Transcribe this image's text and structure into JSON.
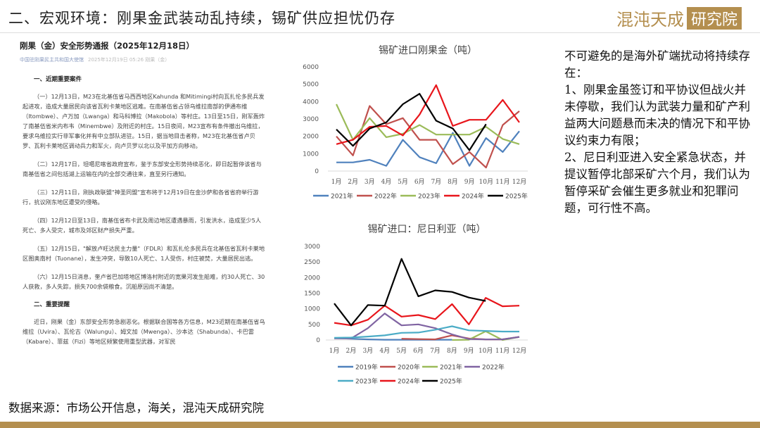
{
  "header": {
    "title": "二、宏观环境：刚果金武装动乱持续，锡矿供应担忧仍存",
    "logo_text": "混沌天成",
    "logo_box": "研究院"
  },
  "document": {
    "title": "刚果（金）安全形势通报（2025年12月18日）",
    "publisher": "中国驻刚果民主共和国大使馆",
    "date": "2025年12月19日 05:26 刚果（金）",
    "section1": "一、近期重要案件",
    "paragraphs1": [
      "（一）12月13日，M23在北基伍省马西西地区Kahunda 和Mitimingi村向瓦扎伦多民兵发起进攻，造成大量居民向该省瓦利卡莱地区逃难。在南基伍省占领乌维拉南部的伊通布维（Itombwe）、卢万加（Lwanga）和马科博拉（Makobola）等村庄。13日至15日，刚军轰炸了南基伍省米内布韦（Minembwe）及附近的村庄。15日夜间，M23宣布有条件撤出乌维拉，要求乌维拉实行非军事化并有中立部队进驻。15日，据当地目击者称，M23在北基伍省卢贝罗、瓦利卡莱地区调动兵力和军火，向卢贝罗以北以及平加方向移动。",
      "（二）12月17日，坦噶尼喀省政府宣布，鉴于东部安全形势持续恶化，即日起暂停该省与南基伍省之间包括湖上运输在内的全部交通往来，直至另行通知。",
      "（三）12月11日，刚执政联盟\"神圣同盟\"宣布将于12月19日在金沙萨和各省省府举行游行，抗议刚东地区遭受的侵略。",
      "（四）12月12日至13日，南基伍省布卡武及周边地区遭遇暴雨，引发洪水，造成至少5人死亡、多人受灾，城市及郊区财产损失严重。",
      "（五）12月15日，\"解放卢旺达民主力量\"（FDLR）和瓦扎伦多民兵在北基伍省瓦利卡莱地区图奥南村（Tuonane），发生冲突，导致10人死亡、1人受伤，村庄被焚，大量居民出逃。",
      "（六）12月15日消息，奎卢省巴加塔地区博洛村附近的宽果河发生船难，约30人死亡、30人获救，多人失踪，损失700余袋粮食。沉船原因尚不清楚。"
    ],
    "section2": "二、重要提醒",
    "paragraphs2": [
      "近日，刚果（金）东部安全形势急剧恶化。根据联合国等各方信息，M23近期在南基伍省乌维拉（Uvira）、瓦伦古（Walungu）、姆文加（Mwenga）、沙本达（Shabunda）、卡巴雷（Kabare）、菲兹（Fizi）等地区频繁使用重型武器，对军民"
    ]
  },
  "right_text": [
    "不可避免的是海外矿端扰动将持续存在：",
    "1、刚果金虽签订和平协议但战火并未停歇，我们认为武装力量和矿产利益两大问题悬而未决的情况下和平协议约束力有限；",
    "2、尼日利亚进入安全紧急状态，并提议暂停北部采矿六个月，我们认为暂停采矿会催生更多就业和犯罪问题，可行性不高。"
  ],
  "source": "数据来源：市场公开信息，海关，混沌天成研究院",
  "colors": {
    "gold": "#b48f4f"
  },
  "chart_data": [
    {
      "type": "line",
      "title": "锡矿进口刚果金（吨）",
      "categories": [
        "1月",
        "2月",
        "3月",
        "4月",
        "5月",
        "6月",
        "7月",
        "8月",
        "9月",
        "10月",
        "11月",
        "12月"
      ],
      "ylim": [
        0,
        6000
      ],
      "yticks": [
        0,
        1000,
        2000,
        3000,
        4000,
        5000,
        6000
      ],
      "legend": "bottom",
      "series": [
        {
          "name": "2021年",
          "color": "#4f81bd",
          "values": [
            500,
            500,
            650,
            300,
            1800,
            800,
            450,
            2200,
            300,
            1900,
            1100,
            2300
          ]
        },
        {
          "name": "2022年",
          "color": "#c0504d",
          "values": [
            2000,
            900,
            3750,
            2700,
            3050,
            1800,
            1800,
            400,
            1100,
            200,
            2650,
            3450
          ]
        },
        {
          "name": "2023年",
          "color": "#9bbb59",
          "values": [
            3850,
            1800,
            3050,
            1950,
            2150,
            2650,
            2100,
            2100,
            2100,
            2550,
            1850,
            1550
          ]
        },
        {
          "name": "2024年",
          "color": "#e8151b",
          "values": [
            1550,
            1800,
            2550,
            2600,
            2050,
            3250,
            4950,
            2600,
            2950,
            2950,
            4100,
            2800
          ]
        },
        {
          "name": "2025年",
          "color": "#000000",
          "values": [
            2400,
            1450,
            2450,
            2800,
            3850,
            4450,
            2900,
            2450,
            1200,
            2700,
            null,
            null
          ]
        }
      ]
    },
    {
      "type": "line",
      "title": "锡矿进口：尼日利亚（吨）",
      "categories": [
        "1月",
        "2月",
        "3月",
        "4月",
        "5月",
        "6月",
        "7月",
        "8月",
        "9月",
        "10月",
        "11月",
        "12月"
      ],
      "ylim": [
        0,
        3000
      ],
      "yticks": [
        0,
        500,
        1000,
        1500,
        2000,
        2500,
        3000
      ],
      "legend": "bottom",
      "series": [
        {
          "name": "2019年",
          "color": "#4f81bd",
          "values": [
            60,
            40,
            20,
            10,
            10,
            10,
            10,
            10,
            null,
            null,
            null,
            null
          ]
        },
        {
          "name": "2020年",
          "color": "#c0504d",
          "values": [
            null,
            null,
            null,
            null,
            40,
            30,
            20,
            150,
            50,
            20,
            20,
            100
          ]
        },
        {
          "name": "2021年",
          "color": "#9bbb59",
          "values": [
            null,
            null,
            null,
            null,
            null,
            null,
            null,
            0,
            10,
            280,
            0,
            100
          ]
        },
        {
          "name": "2022年",
          "color": "#8064a2",
          "values": [
            50,
            50,
            380,
            850,
            470,
            500,
            380,
            180,
            30,
            20,
            20,
            100
          ]
        },
        {
          "name": "2023年",
          "color": "#4bacc6",
          "values": [
            70,
            80,
            110,
            150,
            230,
            240,
            330,
            440,
            310,
            290,
            270,
            270
          ]
        },
        {
          "name": "2024年",
          "color": "#e8151b",
          "values": [
            550,
            470,
            650,
            1100,
            750,
            800,
            670,
            1150,
            500,
            1350,
            1080,
            1100
          ]
        },
        {
          "name": "2025年",
          "color": "#000000",
          "values": [
            1170,
            470,
            1120,
            1100,
            2600,
            1400,
            1590,
            1540,
            1360,
            1250,
            null,
            null
          ]
        }
      ]
    }
  ]
}
